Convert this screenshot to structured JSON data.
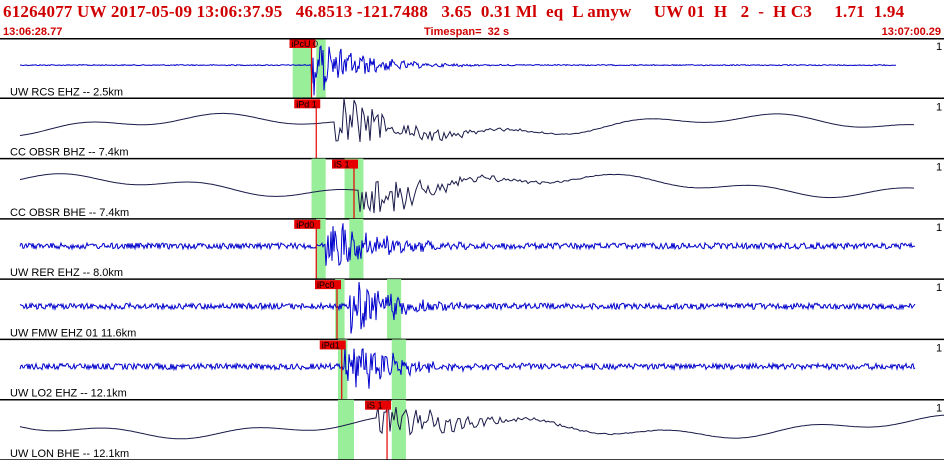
{
  "header": {
    "title": "61264077 UW 2017-05-09 13:06:37.95   46.8513 -121.7488   3.65  0.31 Ml  eq  L amyw     UW 01  H   2  -  H C3     1.71  1.94",
    "start_time": "13:06:28.77",
    "timespan": "Timespan=  32 s",
    "end_time": "13:07:00.29"
  },
  "colors": {
    "text": "#d00000",
    "trace_blue": "#0000cc",
    "trace_dark": "#1a1a4a",
    "pick": "#e60000",
    "window": "#99ee99",
    "border": "#000000"
  },
  "traces": [
    {
      "label": "UW RCS EHZ -- 2.5km",
      "scale": "1",
      "color": "blue",
      "style": "spike",
      "onset": 0.33,
      "amp": 1.0,
      "pick": "iPcU 0",
      "pick_t": 0.33,
      "windows": [
        [
          0.31,
          0.33
        ],
        [
          0.335,
          0.345
        ]
      ],
      "end": 0.95
    },
    {
      "label": "CC OBSR BHZ -- 7.4km",
      "scale": "1",
      "color": "dark",
      "style": "wave",
      "onset": 0.355,
      "amp": 1.0,
      "pick": "iPd 1",
      "pick_t": 0.335,
      "windows": [],
      "end": 0.97
    },
    {
      "label": "CC OBSR BHE -- 7.4km",
      "scale": "1",
      "color": "dark",
      "style": "wave",
      "onset": 0.38,
      "amp": 1.0,
      "pick": "iS 1",
      "pick_t": 0.375,
      "windows": [
        [
          0.33,
          0.345
        ],
        [
          0.365,
          0.385
        ]
      ],
      "end": 0.97
    },
    {
      "label": "UW RER EHZ -- 8.0km",
      "scale": "1",
      "color": "blue",
      "style": "noise",
      "onset": 0.345,
      "amp": 1.0,
      "pick": "iPd0",
      "pick_t": 0.335,
      "windows": [
        [
          0.335,
          0.345
        ],
        [
          0.37,
          0.385
        ]
      ],
      "end": 0.97
    },
    {
      "label": "UW FMW EHZ 01 11.6km",
      "scale": "1",
      "color": "blue",
      "style": "noise",
      "onset": 0.37,
      "amp": 1.0,
      "pick": "iPc0",
      "pick_t": 0.357,
      "windows": [
        [
          0.355,
          0.365
        ],
        [
          0.41,
          0.425
        ]
      ],
      "end": 0.97
    },
    {
      "label": "UW LO2 EHZ -- 12.1km",
      "scale": "1",
      "color": "blue",
      "style": "noise",
      "onset": 0.365,
      "amp": 1.0,
      "pick": "iPd1",
      "pick_t": 0.362,
      "windows": [
        [
          0.358,
          0.368
        ],
        [
          0.415,
          0.43
        ]
      ],
      "end": 0.97
    },
    {
      "label": "UW LON BHE -- 12.1km",
      "scale": "1",
      "color": "dark",
      "style": "wave",
      "onset": 0.4,
      "amp": 1.0,
      "pick": "iS 1",
      "pick_t": 0.41,
      "windows": [
        [
          0.358,
          0.375
        ],
        [
          0.415,
          0.43
        ]
      ],
      "end": 1.0
    }
  ]
}
